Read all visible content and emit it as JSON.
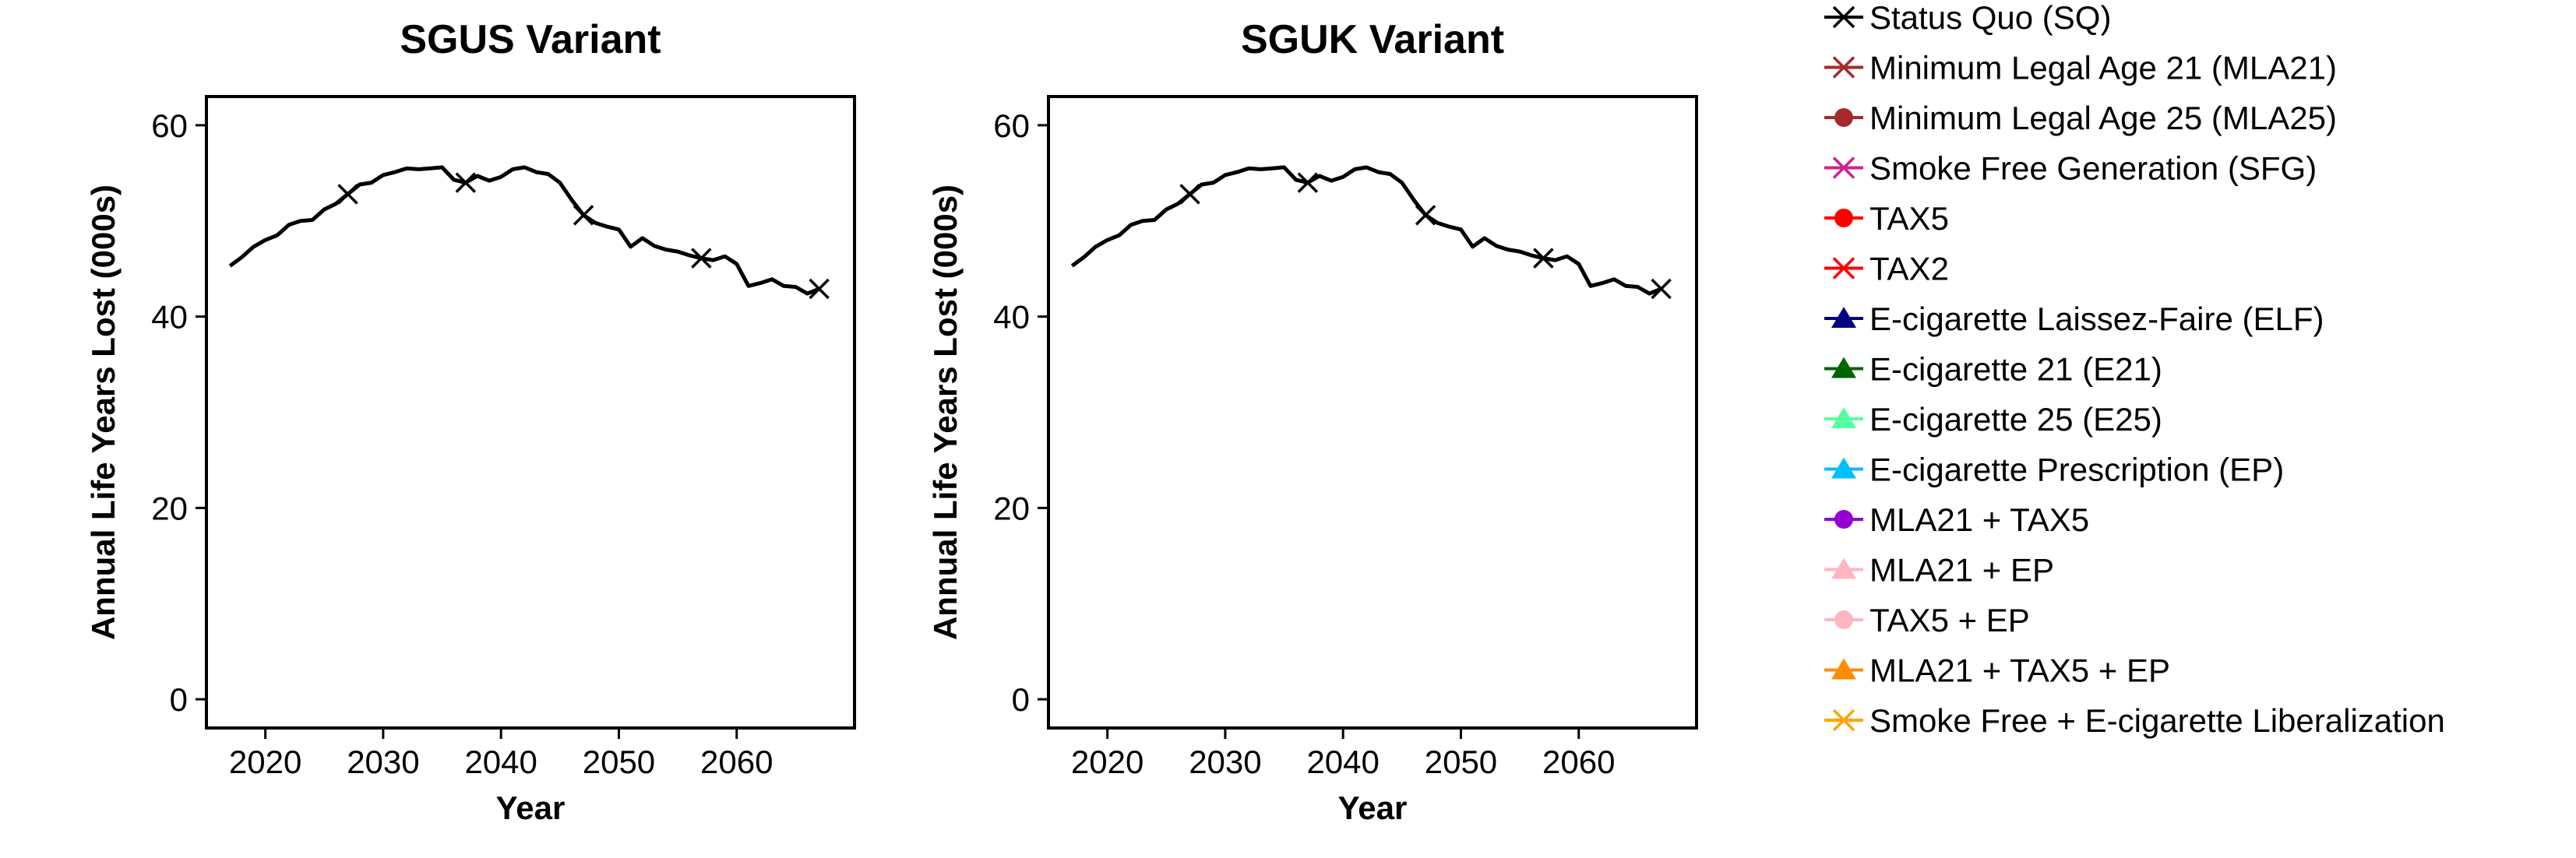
{
  "chart_data": [
    {
      "type": "line",
      "title": "SGUS Variant",
      "xlabel": "Year",
      "ylabel": "Annual Life Years Lost (000s)",
      "xlim": [
        2015,
        2070
      ],
      "ylim": [
        -3,
        63
      ],
      "xticks": [
        2020,
        2030,
        2040,
        2050,
        2060
      ],
      "yticks": [
        0,
        20,
        40,
        60
      ],
      "grid": false,
      "series": [
        {
          "name": "Status Quo (SQ)",
          "marker_years": [
            2027,
            2037,
            2047,
            2057,
            2067
          ],
          "points": [
            [
              2017,
              45.3
            ],
            [
              2018,
              46.2
            ],
            [
              2019,
              47.3
            ],
            [
              2020,
              48.0
            ],
            [
              2021,
              48.5
            ],
            [
              2022,
              49.6
            ],
            [
              2023,
              50.0
            ],
            [
              2024,
              50.1
            ],
            [
              2025,
              51.2
            ],
            [
              2026,
              51.8
            ],
            [
              2027,
              52.8
            ],
            [
              2028,
              53.8
            ],
            [
              2029,
              54.0
            ],
            [
              2030,
              54.8
            ],
            [
              2031,
              55.1
            ],
            [
              2032,
              55.5
            ],
            [
              2033,
              55.4
            ],
            [
              2034,
              55.5
            ],
            [
              2035,
              55.6
            ],
            [
              2036,
              54.3
            ],
            [
              2037,
              54.0
            ],
            [
              2038,
              54.7
            ],
            [
              2039,
              54.2
            ],
            [
              2040,
              54.6
            ],
            [
              2041,
              55.4
            ],
            [
              2042,
              55.6
            ],
            [
              2043,
              55.1
            ],
            [
              2044,
              54.9
            ],
            [
              2045,
              54.0
            ],
            [
              2046,
              52.2
            ],
            [
              2047,
              50.6
            ],
            [
              2048,
              49.8
            ],
            [
              2049,
              49.4
            ],
            [
              2050,
              49.1
            ],
            [
              2051,
              47.3
            ],
            [
              2052,
              48.2
            ],
            [
              2053,
              47.4
            ],
            [
              2054,
              47.0
            ],
            [
              2055,
              46.8
            ],
            [
              2056,
              46.4
            ],
            [
              2057,
              46.1
            ],
            [
              2058,
              45.9
            ],
            [
              2059,
              46.3
            ],
            [
              2060,
              45.5
            ],
            [
              2061,
              43.2
            ],
            [
              2062,
              43.5
            ],
            [
              2063,
              43.9
            ],
            [
              2064,
              43.2
            ],
            [
              2065,
              43.1
            ],
            [
              2066,
              42.4
            ],
            [
              2067,
              42.9
            ]
          ]
        }
      ]
    },
    {
      "type": "line",
      "title": "SGUK Variant",
      "xlabel": "Year",
      "ylabel": "Annual Life Years Lost (000s)",
      "xlim": [
        2015,
        2070
      ],
      "ylim": [
        -3,
        63
      ],
      "xticks": [
        2020,
        2030,
        2040,
        2050,
        2060
      ],
      "yticks": [
        0,
        20,
        40,
        60
      ],
      "grid": false,
      "series": [
        {
          "name": "Status Quo (SQ)",
          "marker_years": [
            2027,
            2037,
            2047,
            2057,
            2067
          ],
          "points": [
            [
              2017,
              45.3
            ],
            [
              2018,
              46.2
            ],
            [
              2019,
              47.3
            ],
            [
              2020,
              48.0
            ],
            [
              2021,
              48.5
            ],
            [
              2022,
              49.6
            ],
            [
              2023,
              50.0
            ],
            [
              2024,
              50.1
            ],
            [
              2025,
              51.2
            ],
            [
              2026,
              51.8
            ],
            [
              2027,
              52.8
            ],
            [
              2028,
              53.8
            ],
            [
              2029,
              54.0
            ],
            [
              2030,
              54.8
            ],
            [
              2031,
              55.1
            ],
            [
              2032,
              55.5
            ],
            [
              2033,
              55.4
            ],
            [
              2034,
              55.5
            ],
            [
              2035,
              55.6
            ],
            [
              2036,
              54.3
            ],
            [
              2037,
              54.0
            ],
            [
              2038,
              54.7
            ],
            [
              2039,
              54.2
            ],
            [
              2040,
              54.6
            ],
            [
              2041,
              55.4
            ],
            [
              2042,
              55.6
            ],
            [
              2043,
              55.1
            ],
            [
              2044,
              54.9
            ],
            [
              2045,
              54.0
            ],
            [
              2046,
              52.2
            ],
            [
              2047,
              50.6
            ],
            [
              2048,
              49.8
            ],
            [
              2049,
              49.4
            ],
            [
              2050,
              49.1
            ],
            [
              2051,
              47.3
            ],
            [
              2052,
              48.2
            ],
            [
              2053,
              47.4
            ],
            [
              2054,
              47.0
            ],
            [
              2055,
              46.8
            ],
            [
              2056,
              46.4
            ],
            [
              2057,
              46.1
            ],
            [
              2058,
              45.9
            ],
            [
              2059,
              46.3
            ],
            [
              2060,
              45.5
            ],
            [
              2061,
              43.2
            ],
            [
              2062,
              43.5
            ],
            [
              2063,
              43.9
            ],
            [
              2064,
              43.2
            ],
            [
              2065,
              43.1
            ],
            [
              2066,
              42.4
            ],
            [
              2067,
              42.9
            ]
          ]
        }
      ]
    }
  ],
  "legend": {
    "placement": "right",
    "items": [
      {
        "label": "Status Quo (SQ)",
        "color": "#000000",
        "marker": "x"
      },
      {
        "label": "Minimum Legal Age 21 (MLA21)",
        "color": "#a52a2a",
        "marker": "x"
      },
      {
        "label": "Minimum Legal Age 25 (MLA25)",
        "color": "#a52a2a",
        "marker": "circle"
      },
      {
        "label": "Smoke Free Generation (SFG)",
        "color": "#d02090",
        "marker": "x"
      },
      {
        "label": "TAX5",
        "color": "#ff0000",
        "marker": "circle"
      },
      {
        "label": "TAX2",
        "color": "#ff0000",
        "marker": "x"
      },
      {
        "label": "E-cigarette Laissez-Faire (ELF)",
        "color": "#000080",
        "marker": "triangle"
      },
      {
        "label": "E-cigarette 21 (E21)",
        "color": "#006400",
        "marker": "triangle"
      },
      {
        "label": "E-cigarette 25 (E25)",
        "color": "#54ff9f",
        "marker": "triangle"
      },
      {
        "label": "E-cigarette Prescription (EP)",
        "color": "#00bfff",
        "marker": "triangle"
      },
      {
        "label": "MLA21 + TAX5",
        "color": "#9400d3",
        "marker": "circle"
      },
      {
        "label": "MLA21 + EP",
        "color": "#ffb6c1",
        "marker": "triangle"
      },
      {
        "label": "TAX5 + EP",
        "color": "#ffb6c1",
        "marker": "circle"
      },
      {
        "label": "MLA21 + TAX5 + EP",
        "color": "#ff8c00",
        "marker": "triangle"
      },
      {
        "label": "Smoke Free + E-cigarette Liberalization",
        "color": "#ffa500",
        "marker": "x"
      }
    ]
  }
}
